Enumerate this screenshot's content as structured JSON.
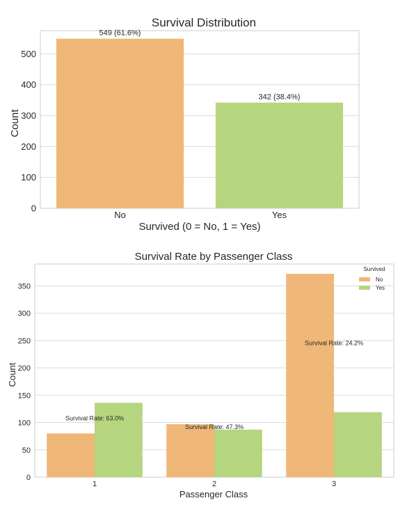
{
  "colors": {
    "no": "#EFB878",
    "yes": "#B5D57F",
    "grid": "#D9D9D9",
    "frame": "#CCCCCC",
    "text": "#262626"
  },
  "chart_data": [
    {
      "type": "bar",
      "title": "Survival Distribution",
      "xlabel": "Survived (0 = No, 1 = Yes)",
      "ylabel": "Count",
      "categories": [
        "No",
        "Yes"
      ],
      "values": [
        549,
        342
      ],
      "data_labels": [
        "549 (61.6%)",
        "342 (38.4%)"
      ],
      "ylim": [
        0,
        575
      ],
      "yticks": [
        0,
        100,
        200,
        300,
        400,
        500
      ],
      "grid": true
    },
    {
      "type": "bar",
      "title": "Survival Rate by Passenger Class",
      "xlabel": "Passenger Class",
      "ylabel": "Count",
      "categories": [
        "1",
        "2",
        "3"
      ],
      "series": [
        {
          "name": "No",
          "values": [
            80,
            97,
            372
          ]
        },
        {
          "name": "Yes",
          "values": [
            136,
            87,
            119
          ]
        }
      ],
      "annotations": [
        "Survival Rate: 63.0%",
        "Survival Rate: 47.3%",
        "Survival Rate: 24.2%"
      ],
      "legend_title": "Survived",
      "legend_position": "top-right",
      "ylim": [
        0,
        390
      ],
      "yticks": [
        0,
        50,
        100,
        150,
        200,
        250,
        300,
        350
      ],
      "grid": true
    }
  ]
}
